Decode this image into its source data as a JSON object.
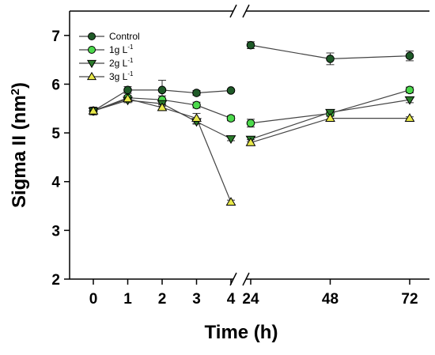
{
  "chart_data": {
    "type": "line",
    "title": "",
    "xlabel": "Time (h)",
    "ylabel": "Sigma II (nm",
    "ylabel_sup": "2",
    "ylabel_close": ")",
    "ylim": [
      2,
      7.5
    ],
    "yticks": [
      2,
      3,
      4,
      5,
      6,
      7
    ],
    "x_axis_break": true,
    "x_segments": [
      [
        0,
        1,
        2,
        3,
        4
      ],
      [
        24,
        48,
        72
      ]
    ],
    "x": [
      0,
      1,
      2,
      3,
      4,
      24,
      48,
      72
    ],
    "legend_position": "top-left",
    "series": [
      {
        "name": "Control",
        "unit": "",
        "marker": "circle",
        "color": "#1f5a28",
        "values": [
          5.45,
          5.88,
          5.88,
          5.82,
          5.87,
          6.8,
          6.52,
          6.58
        ],
        "errors": [
          0.08,
          0.07,
          0.2,
          0.05,
          0.03,
          0.07,
          0.12,
          0.1
        ]
      },
      {
        "name": "1g L",
        "unit": "-1",
        "marker": "circle",
        "color": "#4cd94c",
        "values": [
          5.45,
          5.72,
          5.68,
          5.57,
          5.3,
          5.2,
          5.4,
          5.88
        ],
        "errors": [
          0.06,
          0.05,
          0.08,
          0.06,
          0.05,
          0.08,
          0.05,
          0.06
        ]
      },
      {
        "name": "2g L",
        "unit": "-1",
        "marker": "triangle-down",
        "color": "#2a7a2a",
        "values": [
          5.45,
          5.67,
          5.6,
          5.23,
          4.88,
          4.87,
          5.42,
          5.68
        ],
        "errors": [
          0.06,
          0.05,
          0.05,
          0.05,
          0.04,
          0.05,
          0.05,
          0.06
        ]
      },
      {
        "name": "3g L",
        "unit": "-1",
        "marker": "triangle-up",
        "color": "#e8e84a",
        "values": [
          5.45,
          5.7,
          5.52,
          5.3,
          3.58,
          4.8,
          5.3,
          5.3
        ],
        "errors": [
          0.06,
          0.05,
          0.06,
          0.1,
          0.04,
          0.06,
          0.04,
          0.03
        ]
      }
    ]
  }
}
